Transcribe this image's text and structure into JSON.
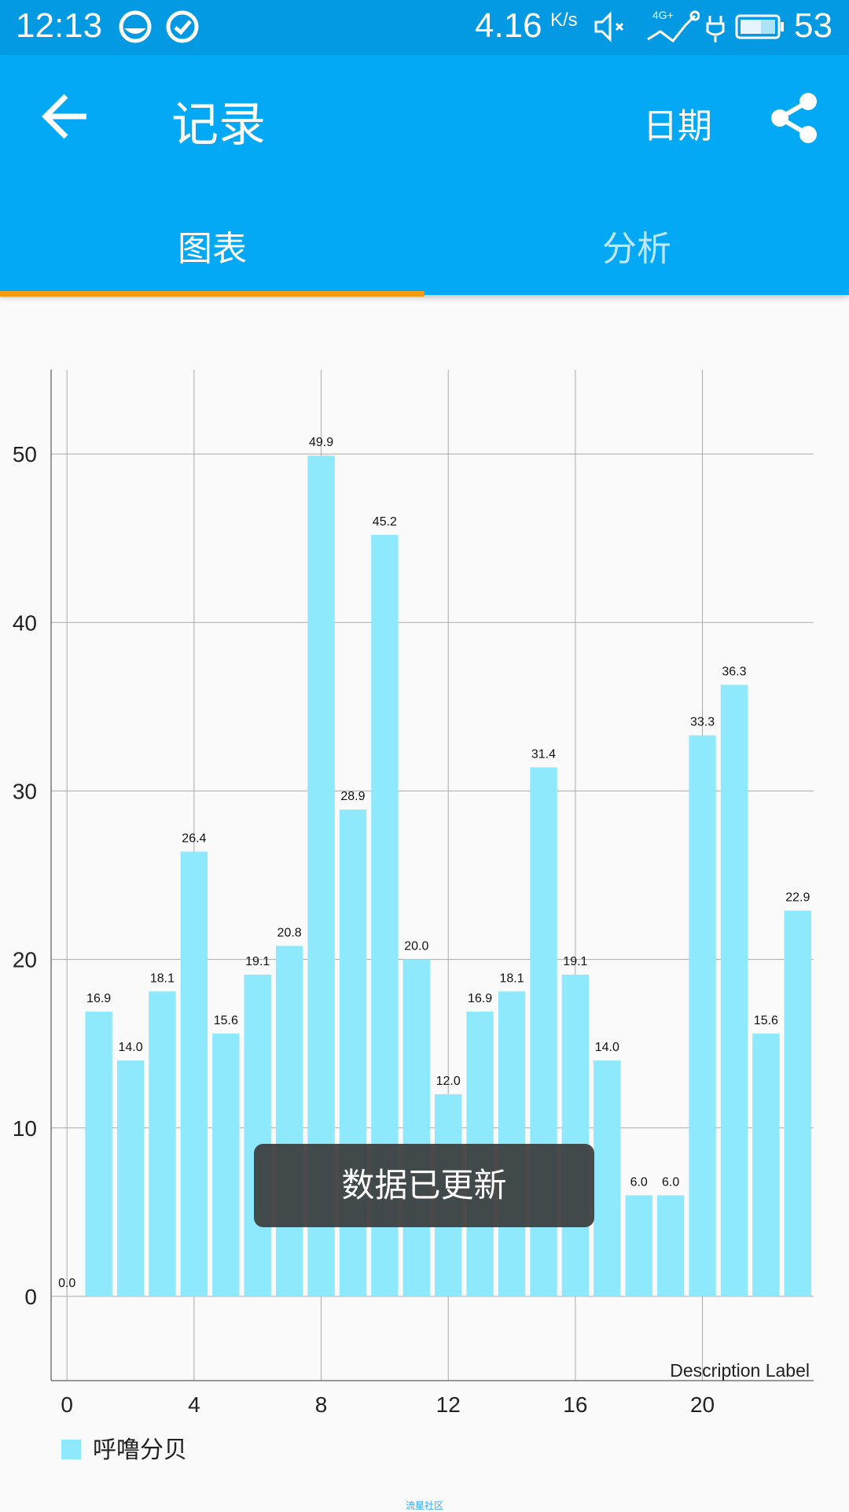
{
  "status_bar": {
    "time": "12:13",
    "speed": "4.16",
    "speed_unit": "K/s",
    "battery": "53"
  },
  "app_bar": {
    "title": "记录",
    "date_label": "日期",
    "back_icon": "arrow-left-icon",
    "share_icon": "share-icon"
  },
  "tabs": [
    {
      "label": "图表",
      "active": true
    },
    {
      "label": "分析",
      "active": false
    }
  ],
  "colors": {
    "status_bar": "#0399e3",
    "app_bar": "#03a9f4",
    "tab_indicator": "#f39c12",
    "bar": "#8ee9fc"
  },
  "chart_data": {
    "type": "bar",
    "x": [
      0,
      1,
      2,
      3,
      4,
      5,
      6,
      7,
      8,
      9,
      10,
      11,
      12,
      13,
      14,
      15,
      16,
      17,
      18,
      19,
      20,
      21,
      22,
      23
    ],
    "values": [
      0.0,
      16.9,
      14.0,
      18.1,
      26.4,
      15.6,
      19.1,
      20.8,
      49.9,
      28.9,
      45.2,
      20.0,
      12.0,
      16.9,
      18.1,
      31.4,
      19.1,
      14.0,
      6.0,
      6.0,
      33.3,
      36.3,
      15.6,
      22.9
    ],
    "value_labels": [
      "0.0",
      "16.9",
      "14.0",
      "18.1",
      "26.4",
      "15.6",
      "19.1",
      "20.8",
      "49.9",
      "28.9",
      "45.2",
      "20.0",
      "12.0",
      "16.9",
      "18.1",
      "31.4",
      "19.1",
      "14.0",
      "6.0",
      "6.0",
      "33.3",
      "36.3",
      "15.6",
      "22.9"
    ],
    "xticks": [
      "0",
      "4",
      "8",
      "12",
      "16",
      "20"
    ],
    "xtick_values": [
      0,
      4,
      8,
      12,
      16,
      20
    ],
    "yticks": [
      "0",
      "10",
      "20",
      "30",
      "40",
      "50"
    ],
    "ytick_values": [
      0,
      10,
      20,
      30,
      40,
      50
    ],
    "xlim": [
      -0.5,
      23.5
    ],
    "ylim": [
      -5,
      55
    ],
    "series_name": "呼噜分贝",
    "description": "Description Label",
    "grid": true,
    "legend_position": "bottom-left"
  },
  "toast": "数据已更新",
  "watermark": "流星社区"
}
